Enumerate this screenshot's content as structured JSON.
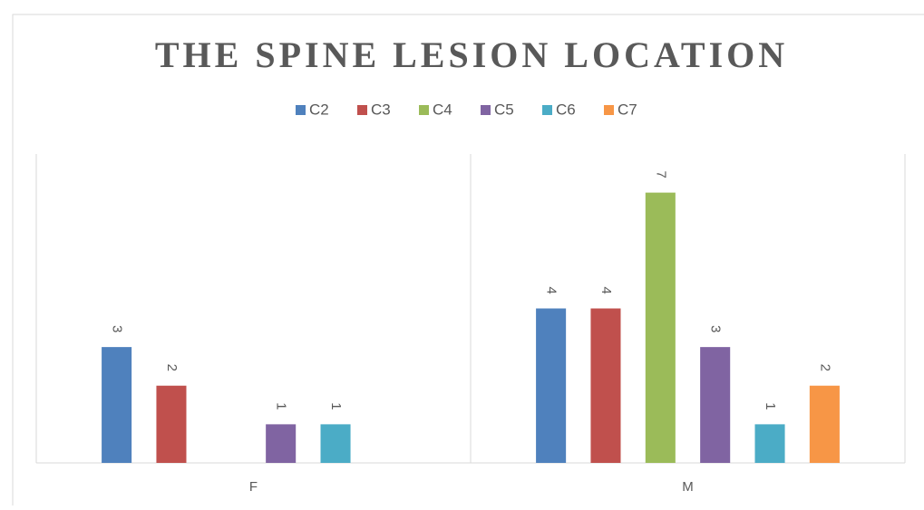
{
  "chart_data": {
    "type": "bar",
    "title": "THE SPINE LESION LOCATION",
    "categories": [
      "F",
      "M"
    ],
    "series": [
      {
        "name": "C2",
        "color": "#4f81bd",
        "values": [
          3,
          4
        ]
      },
      {
        "name": "C3",
        "color": "#c0504d",
        "values": [
          2,
          4
        ]
      },
      {
        "name": "C4",
        "color": "#9bbb59",
        "values": [
          null,
          7
        ]
      },
      {
        "name": "C5",
        "color": "#8064a2",
        "values": [
          1,
          3
        ]
      },
      {
        "name": "C6",
        "color": "#4bacc6",
        "values": [
          1,
          1
        ]
      },
      {
        "name": "C7",
        "color": "#f79646",
        "values": [
          null,
          2
        ]
      }
    ],
    "ylim": [
      0,
      8
    ],
    "legend": "top"
  }
}
